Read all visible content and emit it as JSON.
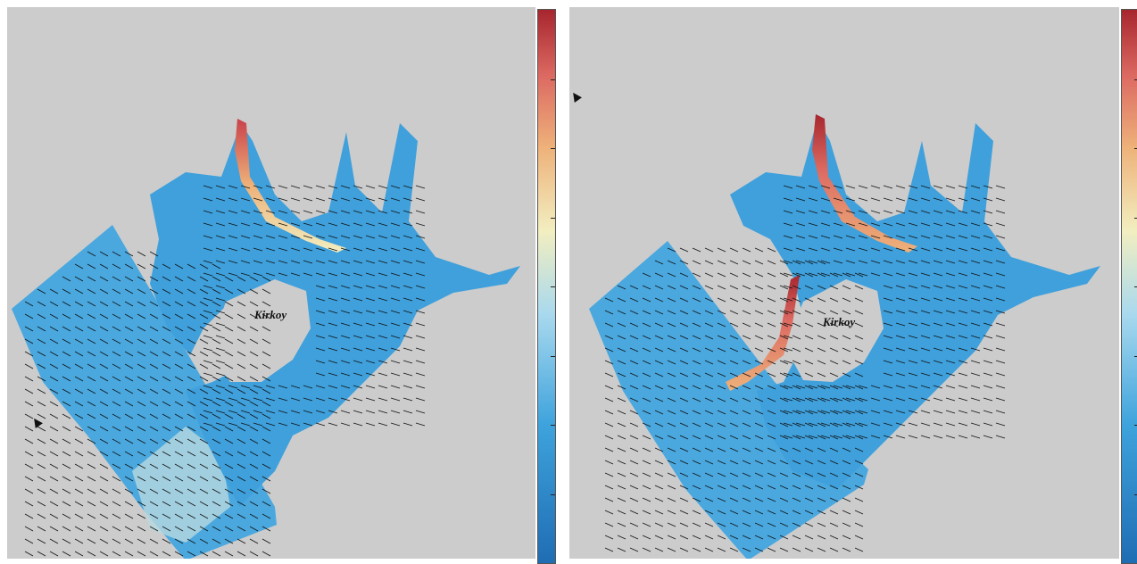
{
  "panels": [
    {
      "id": "left",
      "place_label": "Kirkoy",
      "colorbar": "blue-white-red"
    },
    {
      "id": "right",
      "place_label": "Kirkoy",
      "colorbar": "blue-white-red"
    }
  ],
  "colors": {
    "background": "#cccccc",
    "water": "#3ea3dc",
    "low": "#1f6db3",
    "mid": "#f2eec0",
    "high": "#a7262e",
    "arrows": "#111111"
  },
  "icons": [
    "mouse-pointer-icon"
  ]
}
